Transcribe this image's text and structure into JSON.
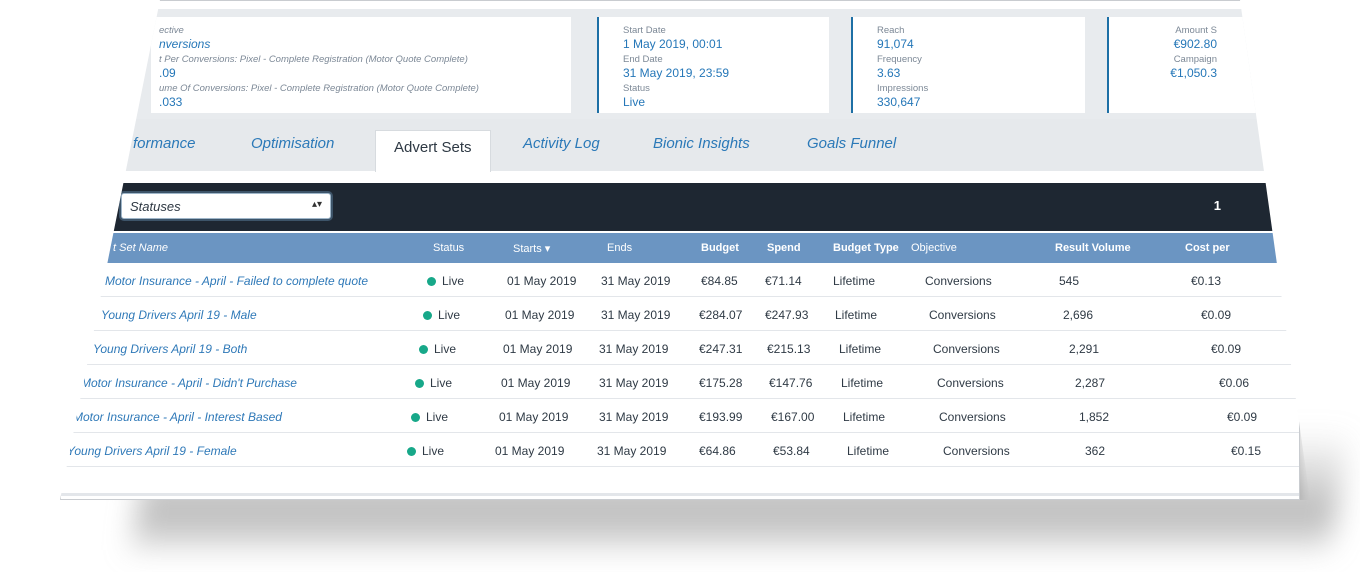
{
  "stats": {
    "card1": {
      "objective_label": "ective",
      "objective_value": "nversions",
      "cpc_label": "t Per Conversions: Pixel - Complete Registration (Motor Quote Complete)",
      "cpc_value": ".09",
      "volume_label": "ume Of Conversions: Pixel - Complete Registration (Motor Quote Complete)",
      "volume_value": ".033"
    },
    "card2": {
      "start_label": "Start Date",
      "start_value": "1 May 2019, 00:01",
      "end_label": "End Date",
      "end_value": "31 May 2019, 23:59",
      "status_label": "Status",
      "status_value": "Live"
    },
    "card3": {
      "reach_label": "Reach",
      "reach_value": "91,074",
      "frequency_label": "Frequency",
      "frequency_value": "3.63",
      "impressions_label": "Impressions",
      "impressions_value": "330,647"
    },
    "card4": {
      "amount_label": "Amount S",
      "amount_value": "€902.80",
      "campaign_label": "Campaign",
      "campaign_value": "€1,050.3"
    }
  },
  "tabs": [
    "formance",
    "Optimisation",
    "Advert Sets",
    "Activity Log",
    "Bionic Insights",
    "Goals Funnel"
  ],
  "filter": {
    "select_value": "Statuses",
    "page_number": "1"
  },
  "table": {
    "headers": [
      "t Set Name",
      "Status",
      "Starts ▾",
      "Ends",
      "Budget",
      "Spend",
      "Budget Type",
      "Objective",
      "Result Volume",
      "Cost per"
    ],
    "rows": [
      [
        "Motor Insurance - April - Failed to complete quote",
        "Live",
        "01 May 2019",
        "31 May 2019",
        "€84.85",
        "€71.14",
        "Lifetime",
        "Conversions",
        "545",
        "€0.13"
      ],
      [
        "Young Drivers April 19 - Male",
        "Live",
        "01 May 2019",
        "31 May 2019",
        "€284.07",
        "€247.93",
        "Lifetime",
        "Conversions",
        "2,696",
        "€0.09"
      ],
      [
        "Young Drivers April 19 - Both",
        "Live",
        "01 May 2019",
        "31 May 2019",
        "€247.31",
        "€215.13",
        "Lifetime",
        "Conversions",
        "2,291",
        "€0.09"
      ],
      [
        "Motor Insurance - April - Didn't Purchase",
        "Live",
        "01 May 2019",
        "31 May 2019",
        "€175.28",
        "€147.76",
        "Lifetime",
        "Conversions",
        "2,287",
        "€0.06"
      ],
      [
        "Motor Insurance - April - Interest Based",
        "Live",
        "01 May 2019",
        "31 May 2019",
        "€193.99",
        "€167.00",
        "Lifetime",
        "Conversions",
        "1,852",
        "€0.09"
      ],
      [
        "Young Drivers April 19 - Female",
        "Live",
        "01 May 2019",
        "31 May 2019",
        "€64.86",
        "€53.84",
        "Lifetime",
        "Conversions",
        "362",
        "€0.15"
      ]
    ]
  },
  "colors": {
    "accent": "#2b79b8",
    "header_bg": "#6b95c2",
    "filter_bg": "#1e2732",
    "live_dot": "#17a889"
  }
}
